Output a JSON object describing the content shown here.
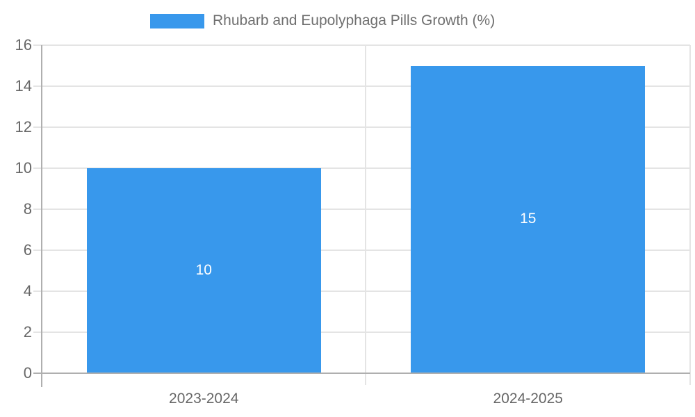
{
  "chart_data": {
    "type": "bar",
    "title": "Rhubarb and Eupolyphaga Pills Growth (%)",
    "xlabel": "",
    "ylabel": "",
    "categories": [
      "2023-2024",
      "2024-2025"
    ],
    "values": [
      10,
      15
    ],
    "data_labels": [
      10,
      15
    ],
    "data_label_position": "inside-center",
    "ylim": [
      0,
      16
    ],
    "ytick_step": 2,
    "yticks": [
      0,
      2,
      4,
      6,
      8,
      10,
      12,
      14,
      16
    ],
    "grid": true,
    "legend_position": "top",
    "legend_entries": [
      "Rhubarb and Eupolyphaga Pills Growth (%)"
    ],
    "colors": {
      "bar": "#3898EC",
      "grid": "#E4E4E4",
      "axis": "#AFAFAF",
      "tick_text": "#666666",
      "legend_text": "#6F6F6F",
      "data_label_text": "#FFFFFF",
      "background": "#FFFFFF"
    }
  }
}
